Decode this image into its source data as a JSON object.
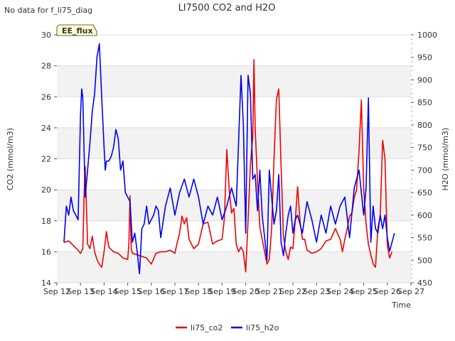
{
  "chart_data": {
    "type": "line",
    "title": "LI7500 CO2 and H2O",
    "corner_note": "No data for f_li75_diag",
    "badge": "EE_flux",
    "xlabel": "Time",
    "ylabel_left": "CO2 (mmol/m3)",
    "ylabel_right": "H2O (mmol/m3)",
    "x_ticks": [
      "Sep 12",
      "Sep 13",
      "Sep 14",
      "Sep 15",
      "Sep 16",
      "Sep 17",
      "Sep 18",
      "Sep 19",
      "Sep 20",
      "Sep 21",
      "Sep 22",
      "Sep 23",
      "Sep 24",
      "Sep 25",
      "Sep 26",
      "Sep 27"
    ],
    "x_range": [
      12,
      27
    ],
    "ylim_left": [
      14,
      30
    ],
    "yticks_left": [
      14,
      16,
      18,
      20,
      22,
      24,
      26,
      28,
      30
    ],
    "ylim_right": [
      450,
      1000
    ],
    "yticks_right": [
      450,
      500,
      550,
      600,
      650,
      700,
      750,
      800,
      850,
      900,
      950,
      1000
    ],
    "grid": true,
    "legend_position": "bottom-center",
    "series": [
      {
        "name": "li75_co2",
        "axis": "left",
        "color": "#ee0000",
        "x": [
          12.3,
          12.5,
          12.7,
          12.9,
          13.0,
          13.1,
          13.15,
          13.2,
          13.3,
          13.4,
          13.5,
          13.6,
          13.7,
          13.8,
          13.9,
          14.0,
          14.1,
          14.2,
          14.4,
          14.6,
          14.8,
          15.0,
          15.05,
          15.1,
          15.15,
          15.2,
          15.4,
          15.6,
          15.8,
          16.0,
          16.2,
          16.4,
          16.6,
          16.8,
          17.0,
          17.1,
          17.2,
          17.3,
          17.4,
          17.5,
          17.6,
          17.8,
          18.0,
          18.2,
          18.4,
          18.6,
          18.8,
          19.0,
          19.1,
          19.2,
          19.3,
          19.4,
          19.5,
          19.6,
          19.7,
          19.8,
          19.9,
          20.0,
          20.1,
          20.2,
          20.3,
          20.35,
          20.4,
          20.5,
          20.6,
          20.7,
          20.8,
          20.9,
          21.0,
          21.1,
          21.2,
          21.3,
          21.4,
          21.5,
          21.6,
          21.7,
          21.8,
          21.9,
          22.0,
          22.1,
          22.2,
          22.3,
          22.4,
          22.5,
          22.6,
          22.8,
          23.0,
          23.2,
          23.4,
          23.6,
          23.8,
          24.0,
          24.1,
          24.2,
          24.3,
          24.4,
          24.5,
          24.6,
          24.7,
          24.8,
          24.9,
          25.0,
          25.1,
          25.2,
          25.3,
          25.4,
          25.5,
          25.6,
          25.7,
          25.8,
          25.9,
          26.0,
          26.1,
          26.2
        ],
        "values": [
          16.6,
          16.7,
          16.4,
          16.1,
          15.9,
          16.2,
          19.5,
          21.5,
          16.5,
          16.2,
          17.0,
          16.0,
          15.5,
          15.2,
          15.0,
          16.0,
          17.3,
          16.3,
          16.0,
          15.9,
          15.6,
          15.5,
          16.5,
          19.6,
          16.2,
          15.9,
          15.8,
          15.7,
          15.6,
          15.2,
          15.9,
          16.0,
          16.0,
          16.1,
          15.9,
          16.6,
          17.2,
          18.3,
          17.8,
          18.2,
          16.8,
          16.2,
          16.5,
          17.8,
          17.9,
          16.5,
          16.7,
          16.8,
          18.2,
          22.6,
          20.0,
          18.5,
          18.8,
          16.5,
          16.0,
          16.3,
          16.0,
          14.7,
          18.0,
          21.6,
          23.5,
          28.4,
          24.0,
          20.5,
          17.6,
          16.8,
          16.0,
          15.2,
          15.5,
          17.5,
          22.0,
          25.8,
          26.5,
          21.5,
          17.0,
          16.0,
          15.5,
          16.3,
          16.2,
          18.0,
          20.2,
          18.0,
          16.8,
          16.8,
          16.1,
          15.9,
          16.0,
          16.2,
          16.7,
          16.8,
          17.5,
          16.8,
          16.0,
          16.8,
          17.5,
          18.3,
          18.5,
          19.5,
          20.0,
          22.5,
          25.8,
          20.0,
          17.8,
          16.5,
          15.8,
          15.2,
          15.0,
          17.5,
          18.3,
          23.2,
          22.0,
          16.4,
          15.6,
          16.0
        ],
        "values_note": "left-axis series"
      },
      {
        "name": "li75_h2o",
        "axis": "right",
        "color": "#0000ee",
        "x": [
          12.3,
          12.4,
          12.5,
          12.6,
          12.7,
          12.8,
          12.9,
          13.0,
          13.05,
          13.1,
          13.2,
          13.3,
          13.4,
          13.5,
          13.6,
          13.7,
          13.8,
          13.9,
          14.0,
          14.05,
          14.1,
          14.2,
          14.3,
          14.4,
          14.5,
          14.6,
          14.7,
          14.8,
          14.9,
          15.0,
          15.1,
          15.2,
          15.3,
          15.4,
          15.5,
          15.6,
          15.7,
          15.8,
          15.9,
          16.0,
          16.1,
          16.2,
          16.3,
          16.4,
          16.6,
          16.8,
          17.0,
          17.2,
          17.4,
          17.6,
          17.8,
          18.0,
          18.2,
          18.4,
          18.6,
          18.8,
          19.0,
          19.2,
          19.4,
          19.6,
          19.8,
          19.9,
          20.0,
          20.1,
          20.2,
          20.3,
          20.4,
          20.5,
          20.6,
          20.7,
          20.8,
          20.9,
          21.0,
          21.1,
          21.2,
          21.3,
          21.4,
          21.5,
          21.6,
          21.7,
          21.8,
          21.9,
          22.0,
          22.1,
          22.2,
          22.4,
          22.6,
          22.8,
          23.0,
          23.2,
          23.4,
          23.6,
          23.8,
          24.0,
          24.2,
          24.4,
          24.6,
          24.8,
          25.0,
          25.1,
          25.2,
          25.3,
          25.4,
          25.5,
          25.6,
          25.7,
          25.8,
          25.9,
          26.0,
          26.1,
          26.2,
          26.3
        ],
        "values": [
          540,
          620,
          600,
          640,
          610,
          600,
          590,
          820,
          880,
          860,
          640,
          700,
          760,
          830,
          870,
          950,
          980,
          860,
          750,
          700,
          720,
          720,
          730,
          750,
          790,
          770,
          700,
          720,
          650,
          640,
          630,
          540,
          560,
          520,
          470,
          570,
          580,
          620,
          580,
          590,
          600,
          620,
          610,
          550,
          620,
          660,
          600,
          650,
          680,
          640,
          680,
          640,
          580,
          620,
          600,
          640,
          590,
          620,
          660,
          620,
          910,
          800,
          560,
          910,
          870,
          680,
          690,
          610,
          700,
          600,
          550,
          500,
          700,
          640,
          580,
          610,
          690,
          540,
          510,
          560,
          600,
          620,
          560,
          590,
          600,
          560,
          630,
          590,
          540,
          600,
          560,
          620,
          580,
          620,
          640,
          550,
          660,
          700,
          600,
          660,
          860,
          540,
          620,
          570,
          560,
          600,
          570,
          600,
          550,
          520,
          540,
          560
        ],
        "values_note": "right-axis series"
      }
    ]
  }
}
